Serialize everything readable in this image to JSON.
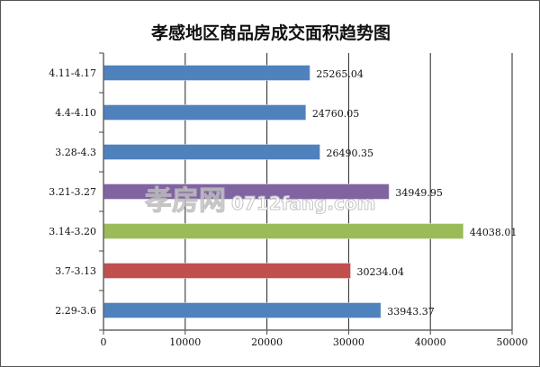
{
  "chart_data": {
    "type": "bar",
    "orientation": "horizontal",
    "title": "孝感地区商品房成交面积趋势图",
    "categories": [
      "2.29-3.6",
      "3.7-3.13",
      "3.14-3.20",
      "3.21-3.27",
      "3.28-4.3",
      "4.4-4.10",
      "4.11-4.17"
    ],
    "values": [
      33943.37,
      30234.04,
      44038.01,
      34949.95,
      26490.35,
      24760.05,
      25265.04
    ],
    "value_labels": [
      "33943.37",
      "30234.04",
      "44038.01",
      "34949.95",
      "26490.35",
      "24760.05",
      "25265.04"
    ],
    "colors": [
      "#4f81bd",
      "#c0504d",
      "#9bbb59",
      "#8064a2",
      "#4f81bd",
      "#4f81bd",
      "#4f81bd"
    ],
    "xlim": [
      0,
      50000
    ],
    "xticks": [
      "0",
      "10000",
      "20000",
      "30000",
      "40000",
      "50000"
    ],
    "grid": true,
    "xlabel": "",
    "ylabel": ""
  },
  "watermark": {
    "cn": "孝房网",
    "en": "0712fang.com"
  }
}
